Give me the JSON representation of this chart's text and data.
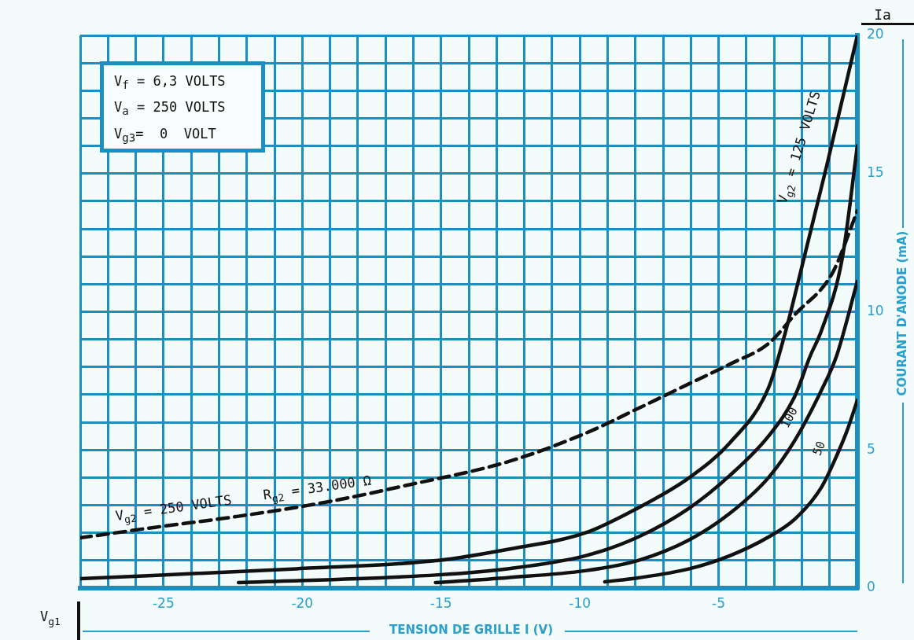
{
  "chart_data": {
    "type": "line",
    "xlabel": "TENSION DE GRILLE I (V)",
    "ylabel": "COURANT D'ANODE (mA)",
    "annotations": [
      "V$_{f}$ = 6,3 VOLTS",
      "V$_{a}$ = 250 VOLTS",
      "V$_{g3}$=  0  VOLT",
      "Ia",
      "V$_{g1}$"
    ],
    "xlim": [
      -28,
      0
    ],
    "ylim": [
      0,
      20
    ],
    "xticks": [
      {
        "value": -28,
        "label": null
      },
      {
        "value": -27,
        "label": null
      },
      {
        "value": -26,
        "label": null
      },
      -25,
      {
        "value": -24,
        "label": null
      },
      {
        "value": -23,
        "label": null
      },
      {
        "value": -22,
        "label": null
      },
      {
        "value": -21,
        "label": null
      },
      -20,
      {
        "value": -19,
        "label": null
      },
      {
        "value": -18,
        "label": null
      },
      {
        "value": -17,
        "label": null
      },
      {
        "value": -16,
        "label": null
      },
      -15,
      {
        "value": -14,
        "label": null
      },
      {
        "value": -13,
        "label": null
      },
      {
        "value": -12,
        "label": null
      },
      {
        "value": -11,
        "label": null
      },
      -10,
      {
        "value": -9,
        "label": null
      },
      {
        "value": -8,
        "label": null
      },
      {
        "value": -7,
        "label": null
      },
      {
        "value": -6,
        "label": null
      },
      -5,
      {
        "value": -4,
        "label": null
      },
      {
        "value": -3,
        "label": null
      },
      {
        "value": -2,
        "label": null
      },
      {
        "value": -1,
        "label": null
      },
      {
        "value": 0,
        "label": null
      }
    ],
    "yticks": [
      0,
      {
        "value": 1,
        "label": null
      },
      {
        "value": 2,
        "label": null
      },
      {
        "value": 3,
        "label": null
      },
      {
        "value": 4,
        "label": null
      },
      5,
      {
        "value": 6,
        "label": null
      },
      {
        "value": 7,
        "label": null
      },
      {
        "value": 8,
        "label": null
      },
      {
        "value": 9,
        "label": null
      },
      10,
      {
        "value": 11,
        "label": null
      },
      {
        "value": 12,
        "label": null
      },
      {
        "value": 13,
        "label": null
      },
      {
        "value": 14,
        "label": null
      },
      15,
      {
        "value": 16,
        "label": null
      },
      {
        "value": 17,
        "label": null
      },
      {
        "value": 18,
        "label": null
      },
      {
        "value": 19,
        "label": null
      },
      20
    ],
    "grid": true,
    "marker": "none",
    "series": [
      {
        "name": "V$_{g2}$ = 125 VOLTS",
        "color": "#111111",
        "line_style": "solid",
        "x": [
          -28,
          -20.2,
          -15.1,
          -12.6,
          -9.8,
          -7.9,
          -6.05,
          -4.6,
          -3.2,
          -2.65,
          -2.35,
          -1.1,
          0
        ],
        "values": [
          0.34,
          0.7,
          1.0,
          1.4,
          2.0,
          2.9,
          4.0,
          5.25,
          7.25,
          9.05,
          10.2,
          15.3,
          20
        ]
      },
      {
        "name": "100",
        "color": "#111111",
        "line_style": "solid",
        "x": [
          -22.3,
          -15.1,
          -12.6,
          -9.8,
          -7.9,
          -6.05,
          -4.6,
          -3.2,
          -2.25,
          -1.7,
          -1.3,
          -0.55,
          0
        ],
        "values": [
          0.2,
          0.48,
          0.7,
          1.17,
          1.85,
          2.9,
          4.07,
          5.5,
          6.95,
          8.4,
          9.3,
          11.9,
          16
        ]
      },
      {
        "name": "50",
        "color": "#111111",
        "line_style": "solid",
        "x": [
          -15.2,
          -12.6,
          -9.8,
          -7.9,
          -6.05,
          -4.6,
          -3.2,
          -2.25,
          -1.3,
          -0.75,
          0
        ],
        "values": [
          0.2,
          0.38,
          0.63,
          1.0,
          1.75,
          2.7,
          4.0,
          5.35,
          7.15,
          8.4,
          11.1
        ]
      },
      {
        "color": "#111111",
        "line_style": "solid",
        "x": [
          -9.1,
          -7.9,
          -6.05,
          -4.6,
          -3.2,
          -2.25,
          -1.3,
          -0.75,
          -0.37,
          0
        ],
        "values": [
          0.23,
          0.37,
          0.7,
          1.17,
          1.85,
          2.5,
          3.64,
          4.78,
          5.7,
          6.8
        ]
      },
      {
        "name": "V$_{g2}$ = 250 VOLTS    R$_{g2}$ = 33.000 Ω",
        "color": "#111111",
        "line_style": "dashed",
        "x": [
          -28,
          -25.3,
          -22.3,
          -19.2,
          -16.1,
          -12.6,
          -9.8,
          -7.9,
          -6.05,
          -4.6,
          -3.2,
          -2.25,
          -0.9,
          0
        ],
        "values": [
          1.82,
          2.2,
          2.6,
          3.1,
          3.75,
          4.57,
          5.6,
          6.5,
          7.4,
          8.1,
          8.85,
          9.9,
          11.4,
          13.65
        ]
      }
    ]
  }
}
